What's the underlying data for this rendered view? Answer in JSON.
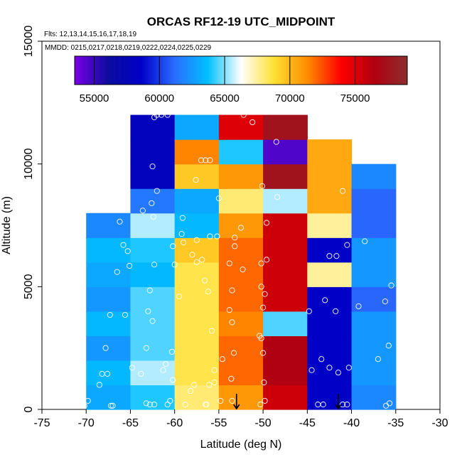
{
  "chart_data": {
    "type": "heatmap",
    "title": "ORCAS RF12-19 UTC_MIDPOINT",
    "flights_label": "Flts: 12,13,14,15,16,17,18,19",
    "dates_label": "MMDD: 0215,0217,0218,0219,0222,0224,0225,0229",
    "xlabel": "Latitude (deg N)",
    "ylabel": "Altitude (m)",
    "xlim": [
      -75,
      -30
    ],
    "ylim": [
      0,
      15000
    ],
    "x_ticks": [
      -75,
      -70,
      -65,
      -60,
      -55,
      -50,
      -45,
      -40,
      -35,
      -30
    ],
    "y_ticks": [
      0,
      5000,
      10000,
      15000
    ],
    "colorbar": {
      "range": [
        53500,
        79000
      ],
      "ticks": [
        55000,
        60000,
        65000,
        70000,
        75000
      ],
      "stops": [
        "#7a00e6",
        "#0c0c9e",
        "#0000c8",
        "#2a6cff",
        "#00bfff",
        "#ffffff",
        "#ffe033",
        "#ff8c00",
        "#ff0000",
        "#b00010",
        "#8c2e2e"
      ]
    },
    "lat_bins": [
      -70,
      -65,
      -60,
      -55,
      -50,
      -45,
      -40
    ],
    "alt_bin_size": 1000,
    "columns": [
      {
        "lat": -70,
        "values": [
          63000,
          63500,
          62500,
          63500,
          62500,
          63000,
          63500,
          62000
        ]
      },
      {
        "lat": -65,
        "values": [
          64000,
          65500,
          64500,
          64500,
          64500,
          63500,
          64000,
          65500,
          61500,
          58000,
          58000,
          58000
        ]
      },
      {
        "lat": -60,
        "values": [
          68000,
          68500,
          68500,
          68500,
          68500,
          68500,
          69500,
          63500,
          63000,
          69500,
          71500,
          63000
        ]
      },
      {
        "lat": -55,
        "values": [
          71000,
          72000,
          72000,
          71500,
          72000,
          72000,
          72000,
          71000,
          68000,
          71000,
          64000,
          75000
        ]
      },
      {
        "lat": -50,
        "values": [
          75500,
          76500,
          76500,
          64500,
          75500,
          75500,
          75500,
          75500,
          65500,
          77500,
          54500,
          77500
        ]
      },
      {
        "lat": -45,
        "values": [
          58500,
          58500,
          58500,
          58500,
          58500,
          67500,
          58500,
          67500,
          70500,
          70500,
          70500
        ]
      },
      {
        "lat": -40,
        "values": [
          62000,
          62500,
          62500,
          62500,
          61000,
          62500,
          62500,
          61000,
          61000,
          62000
        ]
      }
    ],
    "points": [
      [
        -70.2,
        150
      ],
      [
        -69.8,
        350
      ],
      [
        -68.5,
        1000
      ],
      [
        -68.2,
        1450
      ],
      [
        -67.6,
        1450
      ],
      [
        -67.2,
        150
      ],
      [
        -67.0,
        150
      ],
      [
        -67.8,
        2500
      ],
      [
        -67.3,
        3850
      ],
      [
        -65.6,
        3850
      ],
      [
        -66.5,
        5600
      ],
      [
        -65.1,
        5850
      ],
      [
        -65.3,
        6450
      ],
      [
        -65.8,
        6700
      ],
      [
        -66.2,
        7650
      ],
      [
        -64.8,
        1700
      ],
      [
        -63.8,
        1450
      ],
      [
        -63.2,
        250
      ],
      [
        -62.8,
        200
      ],
      [
        -62.3,
        200
      ],
      [
        -63.2,
        2500
      ],
      [
        -63.0,
        4000
      ],
      [
        -62.5,
        3600
      ],
      [
        -62.8,
        4850
      ],
      [
        -62.3,
        5900
      ],
      [
        -62.4,
        7850
      ],
      [
        -63.6,
        8100
      ],
      [
        -62.6,
        8400
      ],
      [
        -62.0,
        8900
      ],
      [
        -62.5,
        9900
      ],
      [
        -62.3,
        11900
      ],
      [
        -62.0,
        12000
      ],
      [
        -61.5,
        12000
      ],
      [
        -60.8,
        12000
      ],
      [
        -61.3,
        1600
      ],
      [
        -61.0,
        1850
      ],
      [
        -60.5,
        350
      ],
      [
        -60.8,
        200
      ],
      [
        -60.2,
        1200
      ],
      [
        -60.3,
        2350
      ],
      [
        -59.5,
        4600
      ],
      [
        -60.0,
        5900
      ],
      [
        -60.2,
        6650
      ],
      [
        -59.0,
        6800
      ],
      [
        -59.2,
        7150
      ],
      [
        -59.1,
        7800
      ],
      [
        -57.5,
        6000
      ],
      [
        -58.0,
        6300
      ],
      [
        -57.6,
        9350
      ],
      [
        -57.0,
        10150
      ],
      [
        -56.5,
        10150
      ],
      [
        -56.0,
        10150
      ],
      [
        -58.8,
        200
      ],
      [
        -58.2,
        750
      ],
      [
        -57.8,
        1000
      ],
      [
        -56.5,
        200
      ],
      [
        -56.1,
        1000
      ],
      [
        -55.5,
        1100
      ],
      [
        -55.8,
        3200
      ],
      [
        -56.2,
        4800
      ],
      [
        -56.6,
        5250
      ],
      [
        -56.9,
        6100
      ],
      [
        -57.5,
        6900
      ],
      [
        -56.0,
        7050
      ],
      [
        -55.2,
        7050
      ],
      [
        -55.0,
        8600
      ],
      [
        -55.5,
        1600
      ],
      [
        -56.4,
        200
      ],
      [
        -54.8,
        350
      ],
      [
        -54.6,
        2050
      ],
      [
        -53.6,
        1250
      ],
      [
        -53.5,
        350
      ],
      [
        -53.3,
        2300
      ],
      [
        -53.5,
        3550
      ],
      [
        -53.8,
        4050
      ],
      [
        -53.5,
        4850
      ],
      [
        -53.8,
        5950
      ],
      [
        -52.3,
        5700
      ],
      [
        -53.2,
        6650
      ],
      [
        -52.5,
        7400
      ],
      [
        -53.2,
        7000
      ],
      [
        -52.2,
        12000
      ],
      [
        -51.2,
        11700
      ],
      [
        -50.3,
        200
      ],
      [
        -49.8,
        350
      ],
      [
        -50.0,
        2300
      ],
      [
        -49.9,
        1100
      ],
      [
        -50.4,
        3000
      ],
      [
        -50.2,
        2900
      ],
      [
        -50.0,
        4150
      ],
      [
        -49.8,
        4700
      ],
      [
        -50.2,
        5000
      ],
      [
        -50.2,
        5950
      ],
      [
        -49.6,
        6100
      ],
      [
        -49.6,
        7600
      ],
      [
        -50.1,
        9100
      ],
      [
        -48.4,
        8650
      ],
      [
        -48.5,
        10900
      ],
      [
        -44.8,
        4000
      ],
      [
        -44.5,
        1600
      ],
      [
        -43.4,
        2050
      ],
      [
        -43.8,
        200
      ],
      [
        -43.2,
        200
      ],
      [
        -42.5,
        1700
      ],
      [
        -41.5,
        1500
      ],
      [
        -41.0,
        200
      ],
      [
        -40.5,
        200
      ],
      [
        -40.3,
        1700
      ],
      [
        -43.0,
        4450
      ],
      [
        -41.8,
        4000
      ],
      [
        -42.5,
        6250
      ],
      [
        -41.7,
        6250
      ],
      [
        -41.0,
        8900
      ],
      [
        -40.5,
        6700
      ],
      [
        -39.2,
        4200
      ],
      [
        -38.5,
        6850
      ],
      [
        -37.0,
        2050
      ],
      [
        -36.2,
        4400
      ],
      [
        -36.1,
        150
      ],
      [
        -35.7,
        250
      ],
      [
        -35.8,
        2600
      ],
      [
        -35.5,
        5050
      ],
      [
        -34.6,
        7500
      ],
      [
        -34.3,
        9900
      ]
    ],
    "arrows": [
      -53,
      -41.5
    ]
  }
}
